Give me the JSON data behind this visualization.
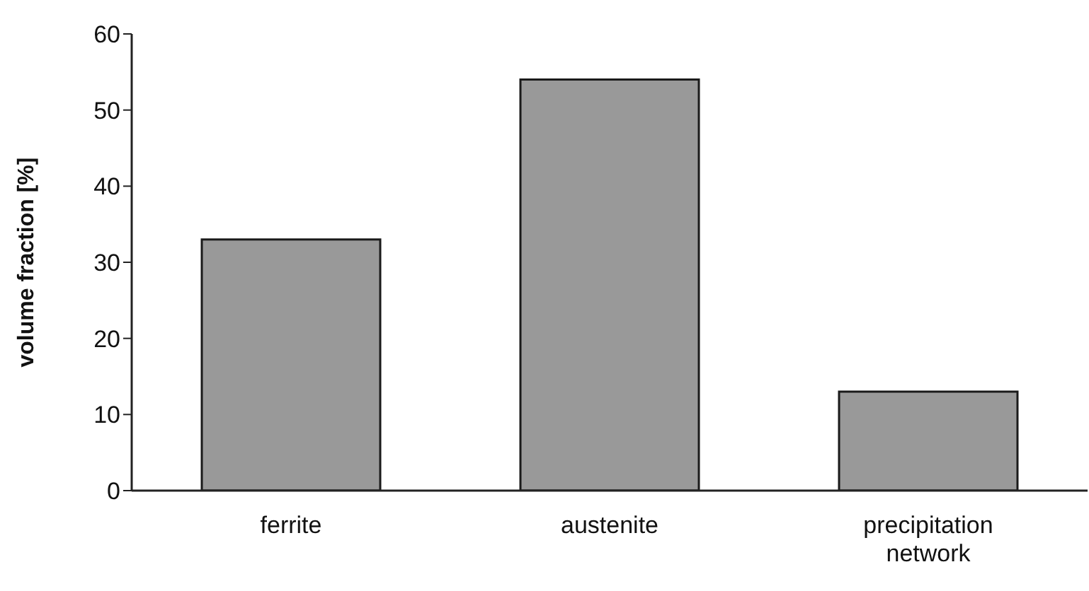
{
  "chart_data": {
    "type": "bar",
    "ylabel": "volume fraction [%]",
    "categories": [
      "ferrite",
      "austenite",
      "precipitation network"
    ],
    "values": [
      33,
      54,
      13
    ],
    "color": "#999999",
    "ylim": [
      0,
      60
    ],
    "yticks": [
      0,
      10,
      20,
      30,
      40,
      50,
      60
    ],
    "grid": false,
    "legend": false
  }
}
